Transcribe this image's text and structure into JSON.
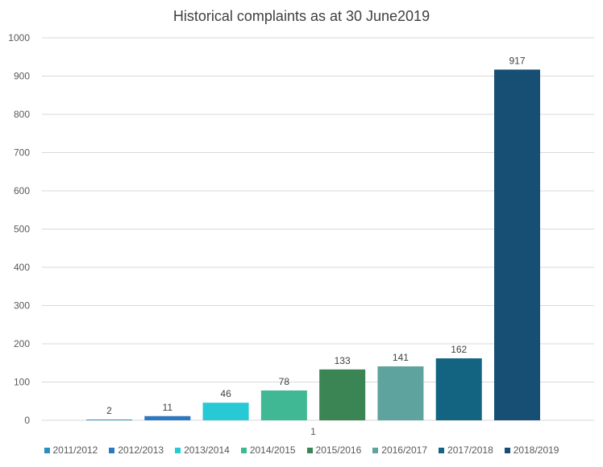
{
  "chart_data": {
    "type": "bar",
    "title": "Historical complaints as at 30 June2019",
    "categories": [
      "1"
    ],
    "series": [
      {
        "name": "2011/2012",
        "values": [
          2
        ],
        "color": "#2a8fc0"
      },
      {
        "name": "2012/2013",
        "values": [
          11
        ],
        "color": "#2e78be"
      },
      {
        "name": "2013/2014",
        "values": [
          46
        ],
        "color": "#27c9d4"
      },
      {
        "name": "2014/2015",
        "values": [
          78
        ],
        "color": "#40b894"
      },
      {
        "name": "2015/2016",
        "values": [
          133
        ],
        "color": "#3b8453"
      },
      {
        "name": "2016/2017",
        "values": [
          141
        ],
        "color": "#5ea39e"
      },
      {
        "name": "2017/2018",
        "values": [
          162
        ],
        "color": "#126481"
      },
      {
        "name": "2018/2019",
        "values": [
          917
        ],
        "color": "#174e74"
      }
    ],
    "yticks": [
      "0",
      "100",
      "200",
      "300",
      "400",
      "500",
      "600",
      "700",
      "800",
      "900",
      "1000"
    ],
    "ylim": [
      0,
      1000
    ],
    "grid": true,
    "legend_position": "bottom"
  }
}
